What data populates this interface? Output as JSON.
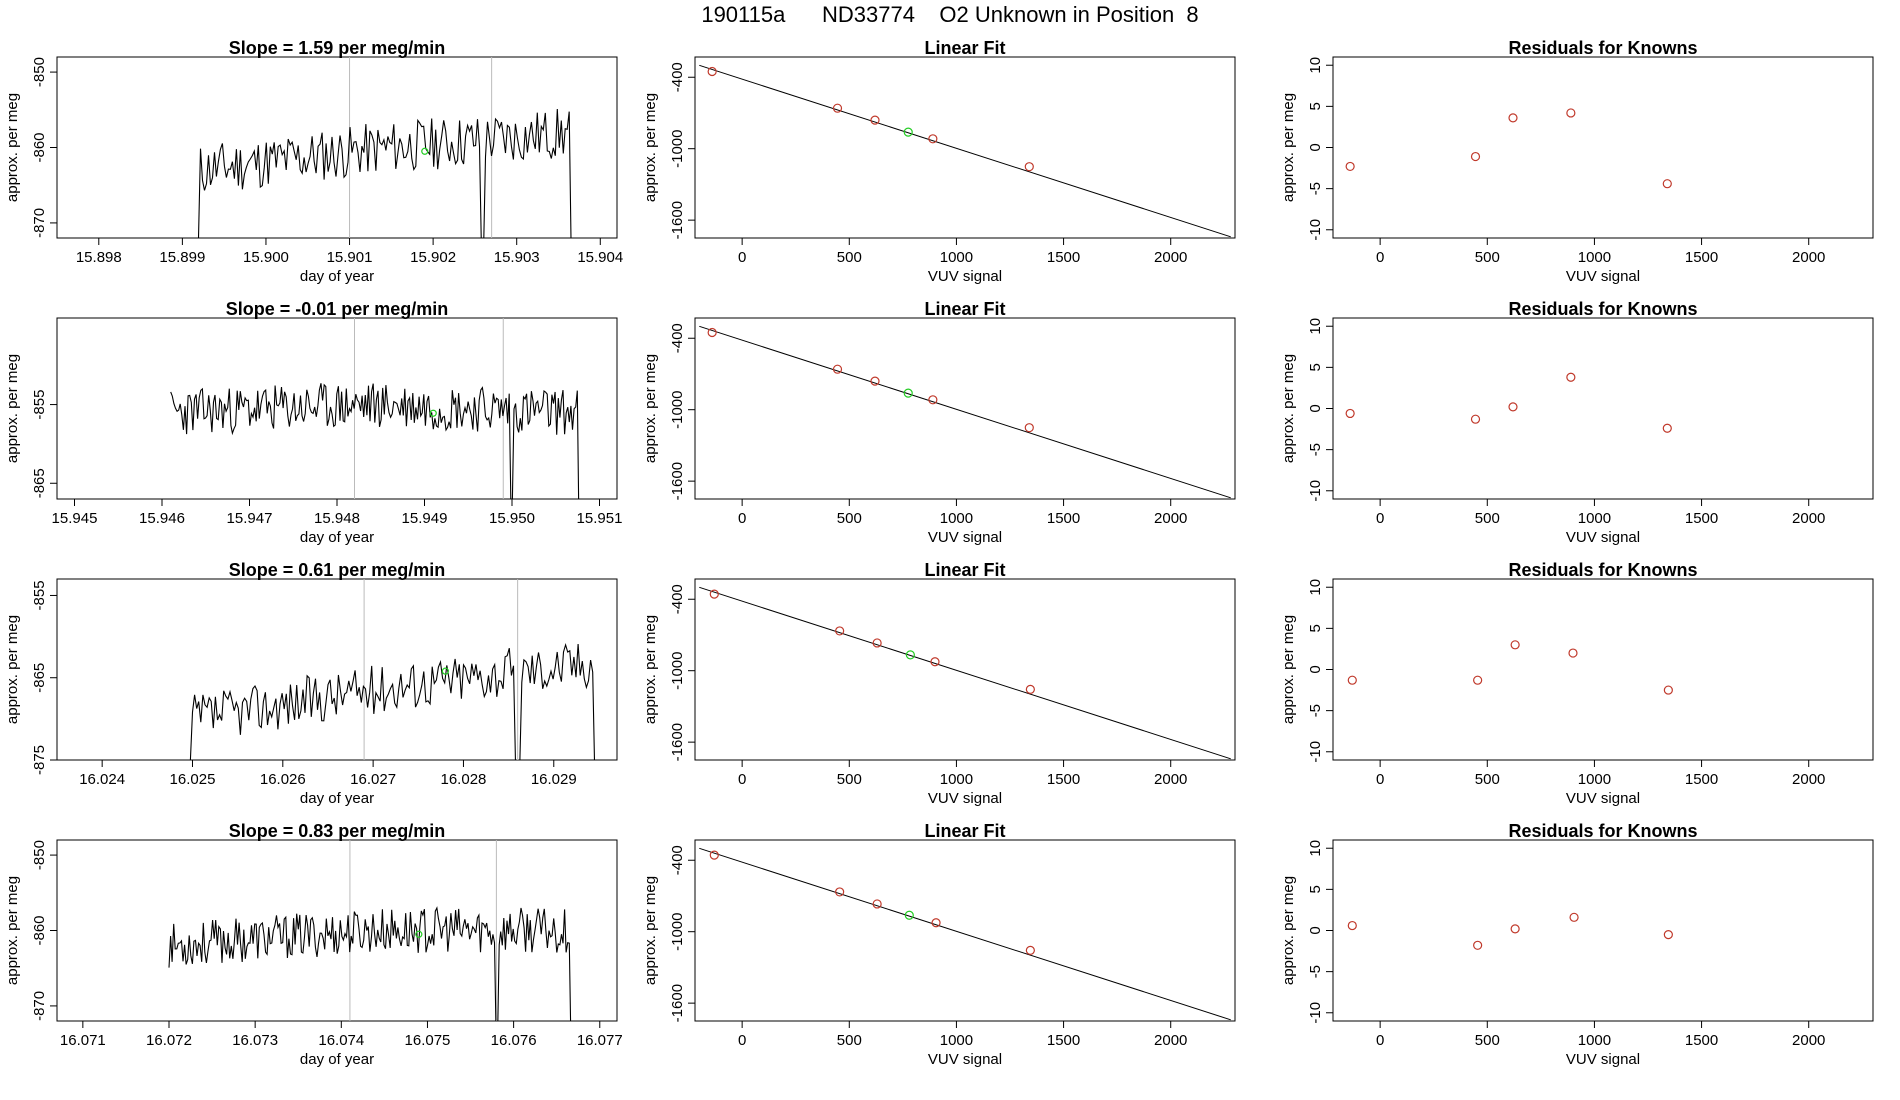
{
  "page_title": "190115a      ND33774    O2 Unknown in Position  8",
  "colors": {
    "line": "#000000",
    "known": "#c0392b",
    "unknown": "#22cc22",
    "vline": "#bbbbbb",
    "axis": "#000000"
  },
  "chart_data": [
    {
      "type": "line",
      "row": 0,
      "title": "Slope =  1.59  per meg/min",
      "xlabel": "day of year",
      "ylabel": "approx. per meg",
      "xlim": [
        15.8975,
        15.9042
      ],
      "ylim": [
        -872,
        -848
      ],
      "xticks": [
        15.898,
        15.899,
        15.9,
        15.901,
        15.902,
        15.903,
        15.904
      ],
      "xtick_labels": [
        "15.898",
        "15.899",
        "15.900",
        "15.901",
        "15.902",
        "15.903",
        "15.904"
      ],
      "yticks": [
        -870,
        -860,
        -850
      ],
      "ytick_labels": [
        "-870",
        "-860",
        "-850"
      ],
      "vlines": [
        15.901,
        15.9027
      ],
      "trace_x_range": [
        15.8975,
        15.9037
      ],
      "trace_x_start": 15.8992,
      "baseline": -872,
      "trace_mean": [
        -863,
        -860,
        -858
      ],
      "trace_noise": 3.5,
      "trace_seed": 11,
      "dips": [
        {
          "x": 15.9026,
          "y": -874
        }
      ],
      "marker": {
        "x": 15.9019,
        "y": -860.5
      }
    },
    {
      "type": "scatter",
      "row": 0,
      "title": "Linear Fit",
      "xlabel": "VUV signal",
      "ylabel": "approx. per meg",
      "xlim": [
        -220,
        2300
      ],
      "ylim": [
        -1750,
        -230
      ],
      "xticks": [
        0,
        500,
        1000,
        1500,
        2000
      ],
      "xtick_labels": [
        "0",
        "500",
        "1000",
        "1500",
        "2000"
      ],
      "yticks": [
        -1600,
        -1000,
        -400
      ],
      "ytick_labels": [
        "-1600",
        "-1000",
        "-400"
      ],
      "fit_line": {
        "x": [
          -200,
          2280
        ],
        "y": [
          -300,
          -1740
        ]
      },
      "known_points": {
        "x": [
          -140,
          445,
          620,
          890,
          1340
        ],
        "y": [
          -352,
          -660,
          -760,
          -917,
          -1151
        ]
      },
      "unknown_points": {
        "x": [
          775
        ],
        "y": [
          -861
        ]
      }
    },
    {
      "type": "scatter",
      "row": 0,
      "title": "Residuals for Knowns",
      "xlabel": "VUV signal",
      "ylabel": "approx. per meg",
      "xlim": [
        -220,
        2300
      ],
      "ylim": [
        -11,
        11
      ],
      "xticks": [
        0,
        500,
        1000,
        1500,
        2000
      ],
      "xtick_labels": [
        "0",
        "500",
        "1000",
        "1500",
        "2000"
      ],
      "yticks": [
        -10,
        -5,
        0,
        5,
        10
      ],
      "ytick_labels": [
        "-10",
        "-5",
        "0",
        "5",
        "10"
      ],
      "known_points": {
        "x": [
          -140,
          445,
          620,
          890,
          1340
        ],
        "y": [
          -2.3,
          -1.1,
          3.6,
          4.2,
          -4.4
        ]
      }
    },
    {
      "type": "line",
      "row": 1,
      "title": "Slope =  -0.01  per meg/min",
      "xlabel": "day of year",
      "ylabel": "approx. per meg",
      "xlim": [
        15.9448,
        15.9512
      ],
      "ylim": [
        -867,
        -844
      ],
      "xticks": [
        15.945,
        15.946,
        15.947,
        15.948,
        15.949,
        15.95,
        15.951
      ],
      "xtick_labels": [
        "15.945",
        "15.946",
        "15.947",
        "15.948",
        "15.949",
        "15.950",
        "15.951"
      ],
      "yticks": [
        -865,
        -855
      ],
      "ytick_labels": [
        "-865",
        "-855"
      ],
      "vlines": [
        15.9482,
        15.9499
      ],
      "trace_x_range": [
        15.9461,
        15.9508
      ],
      "trace_x_start": 15.9461,
      "baseline": -867,
      "trace_mean": [
        -856,
        -855,
        -856
      ],
      "trace_noise": 3.0,
      "trace_seed": 23,
      "dips": [
        {
          "x": 15.95,
          "y": -867
        }
      ],
      "marker": {
        "x": 15.9491,
        "y": -856.1
      }
    },
    {
      "type": "scatter",
      "row": 1,
      "title": "Linear Fit",
      "xlabel": "VUV signal",
      "ylabel": "approx. per meg",
      "xlim": [
        -220,
        2300
      ],
      "ylim": [
        -1750,
        -230
      ],
      "xticks": [
        0,
        500,
        1000,
        1500,
        2000
      ],
      "xtick_labels": [
        "0",
        "500",
        "1000",
        "1500",
        "2000"
      ],
      "yticks": [
        -1600,
        -1000,
        -400
      ],
      "ytick_labels": [
        "-1600",
        "-1000",
        "-400"
      ],
      "fit_line": {
        "x": [
          -200,
          2280
        ],
        "y": [
          -300,
          -1740
        ]
      },
      "known_points": {
        "x": [
          -140,
          445,
          620,
          890,
          1340
        ],
        "y": [
          -352,
          -660,
          -760,
          -917,
          -1151
        ]
      },
      "unknown_points": {
        "x": [
          775
        ],
        "y": [
          -861
        ]
      }
    },
    {
      "type": "scatter",
      "row": 1,
      "title": "Residuals for Knowns",
      "xlabel": "VUV signal",
      "ylabel": "approx. per meg",
      "xlim": [
        -220,
        2300
      ],
      "ylim": [
        -11,
        11
      ],
      "xticks": [
        0,
        500,
        1000,
        1500,
        2000
      ],
      "xtick_labels": [
        "0",
        "500",
        "1000",
        "1500",
        "2000"
      ],
      "yticks": [
        -10,
        -5,
        0,
        5,
        10
      ],
      "ytick_labels": [
        "-10",
        "-5",
        "0",
        "5",
        "10"
      ],
      "known_points": {
        "x": [
          -140,
          445,
          620,
          890,
          1340
        ],
        "y": [
          -0.6,
          -1.3,
          0.2,
          3.8,
          -2.4
        ]
      }
    },
    {
      "type": "line",
      "row": 2,
      "title": "Slope =  0.61  per meg/min",
      "xlabel": "day of year",
      "ylabel": "approx. per meg",
      "xlim": [
        16.0235,
        16.0297
      ],
      "ylim": [
        -875,
        -853
      ],
      "xticks": [
        16.024,
        16.025,
        16.026,
        16.027,
        16.028,
        16.029
      ],
      "xtick_labels": [
        "16.024",
        "16.025",
        "16.026",
        "16.027",
        "16.028",
        "16.029"
      ],
      "yticks": [
        -875,
        -865,
        -855
      ],
      "ytick_labels": [
        "-875",
        "-865",
        "-855"
      ],
      "vlines": [
        16.0269,
        16.0286
      ],
      "trace_x_range": [
        16.0235,
        16.0295
      ],
      "trace_x_start": 16.025,
      "baseline": -875,
      "trace_mean": [
        -870,
        -866,
        -863
      ],
      "trace_noise": 3.0,
      "trace_seed": 37,
      "dips": [
        {
          "x": 16.0286,
          "y": -876
        }
      ],
      "marker": {
        "x": 16.0278,
        "y": -864.2
      }
    },
    {
      "type": "scatter",
      "row": 2,
      "title": "Linear Fit",
      "xlabel": "VUV signal",
      "ylabel": "approx. per meg",
      "xlim": [
        -220,
        2300
      ],
      "ylim": [
        -1750,
        -230
      ],
      "xticks": [
        0,
        500,
        1000,
        1500,
        2000
      ],
      "xtick_labels": [
        "0",
        "500",
        "1000",
        "1500",
        "2000"
      ],
      "yticks": [
        -1600,
        -1000,
        -400
      ],
      "ytick_labels": [
        "-1600",
        "-1000",
        "-400"
      ],
      "fit_line": {
        "x": [
          -200,
          2280
        ],
        "y": [
          -300,
          -1740
        ]
      },
      "known_points": {
        "x": [
          -130,
          455,
          630,
          900,
          1345
        ],
        "y": [
          -357,
          -666,
          -767,
          -925,
          -1157
        ]
      },
      "unknown_points": {
        "x": [
          785
        ],
        "y": [
          -867
        ]
      }
    },
    {
      "type": "scatter",
      "row": 2,
      "title": "Residuals for Knowns",
      "xlabel": "VUV signal",
      "ylabel": "approx. per meg",
      "xlim": [
        -220,
        2300
      ],
      "ylim": [
        -11,
        11
      ],
      "xticks": [
        0,
        500,
        1000,
        1500,
        2000
      ],
      "xtick_labels": [
        "0",
        "500",
        "1000",
        "1500",
        "2000"
      ],
      "yticks": [
        -10,
        -5,
        0,
        5,
        10
      ],
      "ytick_labels": [
        "-10",
        "-5",
        "0",
        "5",
        "10"
      ],
      "known_points": {
        "x": [
          -130,
          455,
          630,
          900,
          1345
        ],
        "y": [
          -1.3,
          -1.3,
          3.0,
          2.0,
          -2.5
        ]
      }
    },
    {
      "type": "line",
      "row": 3,
      "title": "Slope =  0.83  per meg/min",
      "xlabel": "day of year",
      "ylabel": "approx. per meg",
      "xlim": [
        16.0707,
        16.0772
      ],
      "ylim": [
        -872,
        -848
      ],
      "xticks": [
        16.071,
        16.072,
        16.073,
        16.074,
        16.075,
        16.076,
        16.077
      ],
      "xtick_labels": [
        "16.071",
        "16.072",
        "16.073",
        "16.074",
        "16.075",
        "16.076",
        "16.077"
      ],
      "yticks": [
        -870,
        -860,
        -850
      ],
      "ytick_labels": [
        "-870",
        "-860",
        "-850"
      ],
      "vlines": [
        16.0741,
        16.0758
      ],
      "trace_x_range": [
        16.072,
        16.0767
      ],
      "trace_x_start": 16.072,
      "baseline": -872,
      "trace_mean": [
        -862,
        -860,
        -860
      ],
      "trace_noise": 3.0,
      "trace_seed": 53,
      "dips": [
        {
          "x": 16.0758,
          "y": -874
        }
      ],
      "marker": {
        "x": 16.0749,
        "y": -860.5
      }
    },
    {
      "type": "scatter",
      "row": 3,
      "title": "Linear Fit",
      "xlabel": "VUV signal",
      "ylabel": "approx. per meg",
      "xlim": [
        -220,
        2300
      ],
      "ylim": [
        -1750,
        -230
      ],
      "xticks": [
        0,
        500,
        1000,
        1500,
        2000
      ],
      "xtick_labels": [
        "0",
        "500",
        "1000",
        "1500",
        "2000"
      ],
      "yticks": [
        -1600,
        -1000,
        -400
      ],
      "ytick_labels": [
        "-1600",
        "-1000",
        "-400"
      ],
      "fit_line": {
        "x": [
          -200,
          2280
        ],
        "y": [
          -300,
          -1740
        ]
      },
      "known_points": {
        "x": [
          -130,
          455,
          630,
          905,
          1345
        ],
        "y": [
          -357,
          -666,
          -767,
          -925,
          -1157
        ]
      },
      "unknown_points": {
        "x": [
          780
        ],
        "y": [
          -862
        ]
      }
    },
    {
      "type": "scatter",
      "row": 3,
      "title": "Residuals for Knowns",
      "xlabel": "VUV signal",
      "ylabel": "approx. per meg",
      "xlim": [
        -220,
        2300
      ],
      "ylim": [
        -11,
        11
      ],
      "xticks": [
        0,
        500,
        1000,
        1500,
        2000
      ],
      "xtick_labels": [
        "0",
        "500",
        "1000",
        "1500",
        "2000"
      ],
      "yticks": [
        -10,
        -5,
        0,
        5,
        10
      ],
      "ytick_labels": [
        "-10",
        "-5",
        "0",
        "5",
        "10"
      ],
      "known_points": {
        "x": [
          -130,
          455,
          630,
          905,
          1345
        ],
        "y": [
          0.6,
          -1.8,
          0.2,
          1.6,
          -0.5
        ]
      }
    }
  ]
}
